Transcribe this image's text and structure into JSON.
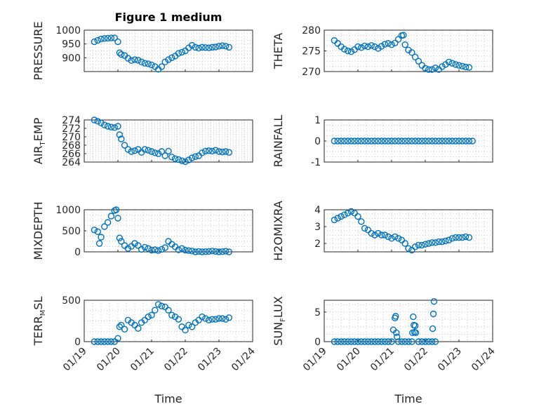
{
  "figure": {
    "title": "Figure 1 medium",
    "xlabel": "Time",
    "xticks": [
      "01/19",
      "01/20",
      "01/21",
      "01/22",
      "01/23",
      "01/24"
    ],
    "series_color": "#0072BD"
  },
  "chart_data": [
    {
      "type": "scatter",
      "ylabel": "PRESSURE",
      "ylim": [
        850,
        1000
      ],
      "yticks": [
        900,
        950,
        1000
      ],
      "x": [
        0.3,
        0.4,
        0.5,
        0.6,
        0.7,
        0.8,
        0.9,
        1.0,
        1.05,
        1.1,
        1.2,
        1.3,
        1.4,
        1.5,
        1.6,
        1.7,
        1.8,
        1.9,
        2.0,
        2.1,
        2.2,
        2.3,
        2.4,
        2.5,
        2.6,
        2.7,
        2.8,
        2.9,
        3.0,
        3.1,
        3.2,
        3.3,
        3.4,
        3.5,
        3.6,
        3.7,
        3.8,
        3.9,
        4.0,
        4.1,
        4.2,
        4.3
      ],
      "y": [
        958,
        963,
        968,
        970,
        971,
        972,
        972,
        958,
        918,
        912,
        908,
        898,
        890,
        893,
        891,
        885,
        880,
        878,
        874,
        868,
        858,
        868,
        885,
        893,
        900,
        906,
        916,
        920,
        925,
        936,
        945,
        938,
        935,
        938,
        937,
        936,
        938,
        939,
        942,
        944,
        942,
        938
      ]
    },
    {
      "type": "scatter",
      "ylabel": "THETA",
      "ylim": [
        270,
        280
      ],
      "yticks": [
        270,
        275,
        280
      ],
      "x": [
        0.3,
        0.4,
        0.5,
        0.6,
        0.7,
        0.8,
        0.9,
        1.0,
        1.1,
        1.2,
        1.3,
        1.4,
        1.5,
        1.6,
        1.7,
        1.8,
        1.9,
        2.0,
        2.1,
        2.2,
        2.3,
        2.35,
        2.4,
        2.5,
        2.6,
        2.7,
        2.8,
        2.9,
        3.0,
        3.1,
        3.2,
        3.3,
        3.4,
        3.5,
        3.6,
        3.7,
        3.8,
        3.9,
        4.0,
        4.1,
        4.2,
        4.3
      ],
      "y": [
        277.5,
        276.8,
        276,
        275.4,
        275,
        274.8,
        275.3,
        276,
        275.8,
        276.2,
        276,
        276.3,
        276,
        275.6,
        276.1,
        276.6,
        276.8,
        276.5,
        276.9,
        277.8,
        278.7,
        278.8,
        276.5,
        275.2,
        274.6,
        273.5,
        272.5,
        271.5,
        270.8,
        270.5,
        270.5,
        270.9,
        270.5,
        271.2,
        271.7,
        272.3,
        272.0,
        271.7,
        271.5,
        271.3,
        271.1,
        271.0
      ]
    },
    {
      "type": "scatter",
      "ylabel": "AIR_TEMP",
      "ylim": [
        264,
        274
      ],
      "yticks": [
        264,
        266,
        268,
        270,
        272,
        274
      ],
      "x": [
        0.3,
        0.4,
        0.5,
        0.6,
        0.7,
        0.8,
        0.9,
        1.0,
        1.05,
        1.1,
        1.2,
        1.3,
        1.4,
        1.5,
        1.6,
        1.7,
        1.8,
        1.9,
        2.0,
        2.1,
        2.2,
        2.3,
        2.4,
        2.5,
        2.6,
        2.7,
        2.8,
        2.9,
        3.0,
        3.1,
        3.2,
        3.3,
        3.4,
        3.5,
        3.6,
        3.7,
        3.8,
        3.9,
        4.0,
        4.1,
        4.2,
        4.3
      ],
      "y": [
        274,
        273.7,
        273.3,
        272.8,
        272.5,
        272.3,
        272.2,
        272.5,
        270.5,
        269.5,
        268,
        267,
        266.5,
        266.7,
        267,
        266.3,
        267.0,
        266.8,
        266.5,
        266.2,
        266.0,
        266.5,
        265.5,
        266.6,
        265.2,
        264.8,
        264.6,
        264.3,
        264.1,
        264.5,
        265.0,
        265.3,
        265.5,
        266.2,
        266.6,
        266.7,
        266.6,
        266.8,
        266.5,
        266.4,
        266.5,
        266.3
      ]
    },
    {
      "type": "scatter",
      "ylabel": "RAINFALL",
      "ylim": [
        -1,
        1
      ],
      "yticks": [
        -1,
        0,
        1
      ],
      "x": [
        0.3,
        0.4,
        0.5,
        0.6,
        0.7,
        0.8,
        0.9,
        1.0,
        1.1,
        1.2,
        1.3,
        1.4,
        1.5,
        1.6,
        1.7,
        1.8,
        1.9,
        2.0,
        2.1,
        2.2,
        2.3,
        2.4,
        2.5,
        2.6,
        2.7,
        2.8,
        2.9,
        3.0,
        3.1,
        3.2,
        3.3,
        3.4,
        3.5,
        3.6,
        3.7,
        3.8,
        3.9,
        4.0,
        4.1,
        4.2,
        4.3,
        4.4
      ],
      "y": [
        0,
        0,
        0,
        0,
        0,
        0,
        0,
        0,
        0,
        0,
        0,
        0,
        0,
        0,
        0,
        0,
        0,
        0,
        0,
        0,
        0,
        0,
        0,
        0,
        0,
        0,
        0,
        0,
        0,
        0,
        0,
        0,
        0,
        0,
        0,
        0,
        0,
        0,
        0,
        0,
        0,
        0
      ]
    },
    {
      "type": "scatter",
      "ylabel": "MIXDEPTH",
      "ylim": [
        0,
        1000
      ],
      "yticks": [
        0,
        500,
        1000
      ],
      "x": [
        0.3,
        0.4,
        0.45,
        0.5,
        0.6,
        0.7,
        0.8,
        0.9,
        0.95,
        1.0,
        1.05,
        1.1,
        1.2,
        1.3,
        1.4,
        1.5,
        1.6,
        1.7,
        1.8,
        1.9,
        2.0,
        2.1,
        2.2,
        2.3,
        2.4,
        2.5,
        2.6,
        2.7,
        2.8,
        2.9,
        3.0,
        3.1,
        3.2,
        3.3,
        3.4,
        3.5,
        3.6,
        3.7,
        3.8,
        3.9,
        4.0,
        4.1,
        4.2,
        4.3
      ],
      "y": [
        520,
        480,
        200,
        350,
        600,
        700,
        850,
        980,
        1000,
        800,
        330,
        250,
        150,
        80,
        130,
        200,
        150,
        60,
        110,
        80,
        40,
        50,
        30,
        60,
        100,
        250,
        180,
        120,
        50,
        80,
        40,
        30,
        20,
        0,
        10,
        0,
        5,
        10,
        20,
        10,
        0,
        5,
        15,
        0
      ]
    },
    {
      "type": "scatter",
      "ylabel": "H2OMIXRA",
      "ylim": [
        1.5,
        4
      ],
      "yticks": [
        2,
        3,
        4
      ],
      "x": [
        0.3,
        0.4,
        0.5,
        0.6,
        0.7,
        0.8,
        0.9,
        1.0,
        1.1,
        1.2,
        1.3,
        1.4,
        1.5,
        1.6,
        1.7,
        1.8,
        1.9,
        2.0,
        2.1,
        2.2,
        2.3,
        2.4,
        2.5,
        2.6,
        2.7,
        2.8,
        2.9,
        3.0,
        3.1,
        3.2,
        3.3,
        3.4,
        3.5,
        3.6,
        3.7,
        3.8,
        3.9,
        4.0,
        4.1,
        4.2,
        4.3
      ],
      "y": [
        3.4,
        3.5,
        3.6,
        3.7,
        3.8,
        3.9,
        3.8,
        3.6,
        3.3,
        2.9,
        2.8,
        2.6,
        2.5,
        2.6,
        2.5,
        2.5,
        2.4,
        2.3,
        2.4,
        2.3,
        2.2,
        2.0,
        1.7,
        1.6,
        1.8,
        1.9,
        1.9,
        1.95,
        2.0,
        2.05,
        2.05,
        2.1,
        2.1,
        2.15,
        2.2,
        2.3,
        2.35,
        2.35,
        2.35,
        2.4,
        2.35
      ]
    },
    {
      "type": "scatter",
      "ylabel": "TERR_MSL",
      "ylim": [
        0,
        500
      ],
      "yticks": [
        0,
        500
      ],
      "x": [
        0.3,
        0.4,
        0.5,
        0.6,
        0.7,
        0.8,
        0.9,
        1.0,
        1.05,
        1.1,
        1.2,
        1.3,
        1.4,
        1.5,
        1.6,
        1.7,
        1.8,
        1.9,
        2.0,
        2.1,
        2.2,
        2.3,
        2.4,
        2.5,
        2.6,
        2.7,
        2.8,
        2.9,
        3.0,
        3.1,
        3.2,
        3.3,
        3.4,
        3.5,
        3.6,
        3.7,
        3.8,
        3.9,
        4.0,
        4.1,
        4.2,
        4.3
      ],
      "y": [
        0,
        0,
        0,
        0,
        0,
        0,
        0,
        40,
        180,
        200,
        150,
        260,
        230,
        200,
        160,
        230,
        260,
        300,
        320,
        380,
        450,
        430,
        420,
        380,
        320,
        300,
        270,
        180,
        140,
        200,
        180,
        230,
        260,
        300,
        280,
        260,
        270,
        270,
        280,
        280,
        270,
        290
      ]
    },
    {
      "type": "scatter",
      "ylabel": "SUN_FLUX",
      "ylim": [
        0,
        7
      ],
      "yticks": [
        0,
        5
      ],
      "x": [
        0.3,
        0.4,
        0.5,
        0.6,
        0.7,
        0.8,
        0.9,
        1.0,
        1.1,
        1.2,
        1.3,
        1.4,
        1.5,
        1.6,
        1.7,
        1.8,
        1.9,
        2.0,
        2.05,
        2.1,
        2.12,
        2.14,
        2.16,
        2.2,
        2.3,
        2.4,
        2.5,
        2.6,
        2.62,
        2.64,
        2.66,
        2.68,
        2.7,
        2.72,
        2.8,
        2.9,
        3.0,
        3.1,
        3.2,
        3.22,
        3.24,
        3.26,
        3.3
      ],
      "y": [
        0,
        0,
        0,
        0,
        0,
        0,
        0,
        0,
        0,
        0,
        0,
        0,
        0,
        0,
        0,
        0,
        0,
        0,
        2.0,
        4.0,
        4.3,
        1.5,
        0.8,
        0,
        0,
        0,
        0,
        0,
        1.5,
        4.2,
        2.8,
        1.6,
        2.7,
        1.5,
        0,
        0,
        0,
        0,
        0,
        2.2,
        4.7,
        6.8,
        0
      ]
    }
  ]
}
